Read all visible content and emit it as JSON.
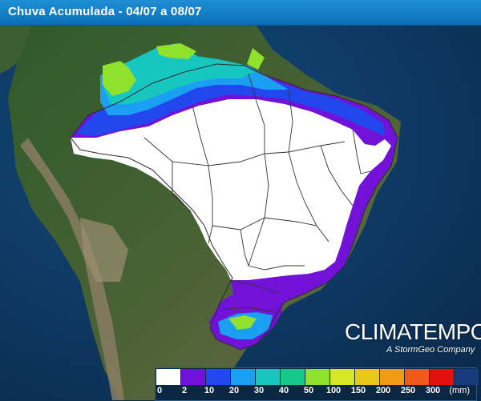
{
  "header": {
    "title": "Chuva Acumulada - 04/07 a 08/07"
  },
  "map": {
    "colors": {
      "ocean": "#0d3a66",
      "land": "#3b5a32",
      "andes": "#8a7d63",
      "no_rain": "#ffffff",
      "state_borders": "#333333"
    }
  },
  "brand": {
    "name": "CLIMATEMPO",
    "tagline": "A StormGeo Company"
  },
  "legend": {
    "unit": "(mm)",
    "classes": [
      {
        "label": "0",
        "color": "#ffffff"
      },
      {
        "label": "2",
        "color": "#7212d9"
      },
      {
        "label": "10",
        "color": "#2147ef"
      },
      {
        "label": "20",
        "color": "#1a9ff2"
      },
      {
        "label": "30",
        "color": "#18c6c0"
      },
      {
        "label": "40",
        "color": "#16c98a"
      },
      {
        "label": "50",
        "color": "#8fe12b"
      },
      {
        "label": "100",
        "color": "#d5e823"
      },
      {
        "label": "150",
        "color": "#e9c81a"
      },
      {
        "label": "200",
        "color": "#f19a16"
      },
      {
        "label": "250",
        "color": "#ef5a16"
      },
      {
        "label": "300",
        "color": "#e21010"
      },
      {
        "label": "",
        "color": "#1a3a7e"
      }
    ]
  }
}
